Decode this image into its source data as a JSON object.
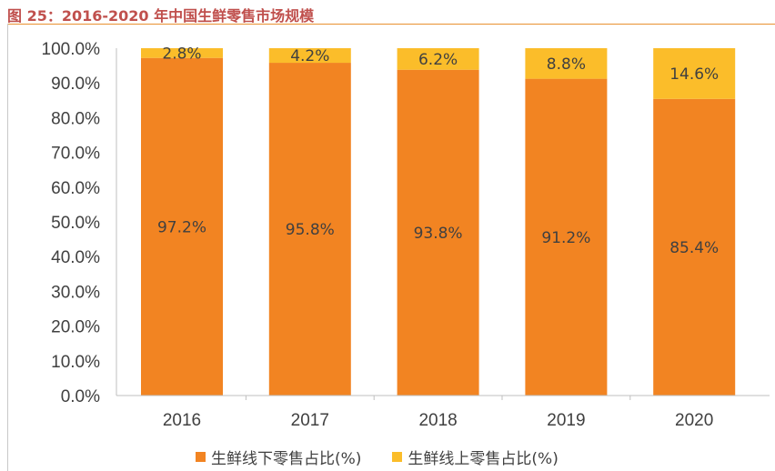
{
  "figure": {
    "title": "图 25：2016-2020 年中国生鲜零售市场规模"
  },
  "chart_data": {
    "type": "bar",
    "stacked": true,
    "categories": [
      "2016",
      "2017",
      "2018",
      "2019",
      "2020"
    ],
    "series": [
      {
        "name": "生鲜线下零售占比(%)",
        "color": "#f28422",
        "values": [
          97.2,
          95.8,
          93.8,
          91.2,
          85.4
        ],
        "labels": [
          "97.2%",
          "95.8%",
          "93.8%",
          "91.2%",
          "85.4%"
        ]
      },
      {
        "name": "生鲜线上零售占比(%)",
        "color": "#fbbd2a",
        "values": [
          2.8,
          4.2,
          6.2,
          8.8,
          14.6
        ],
        "labels": [
          "2.8%",
          "4.2%",
          "6.2%",
          "8.8%",
          "14.6%"
        ]
      }
    ],
    "y_ticks": [
      "0.0%",
      "10.0%",
      "20.0%",
      "30.0%",
      "40.0%",
      "50.0%",
      "60.0%",
      "70.0%",
      "80.0%",
      "90.0%",
      "100.0%"
    ],
    "ylim": [
      0,
      100
    ],
    "xlabel": "",
    "ylabel": "",
    "grid": false,
    "legend_position": "bottom"
  }
}
